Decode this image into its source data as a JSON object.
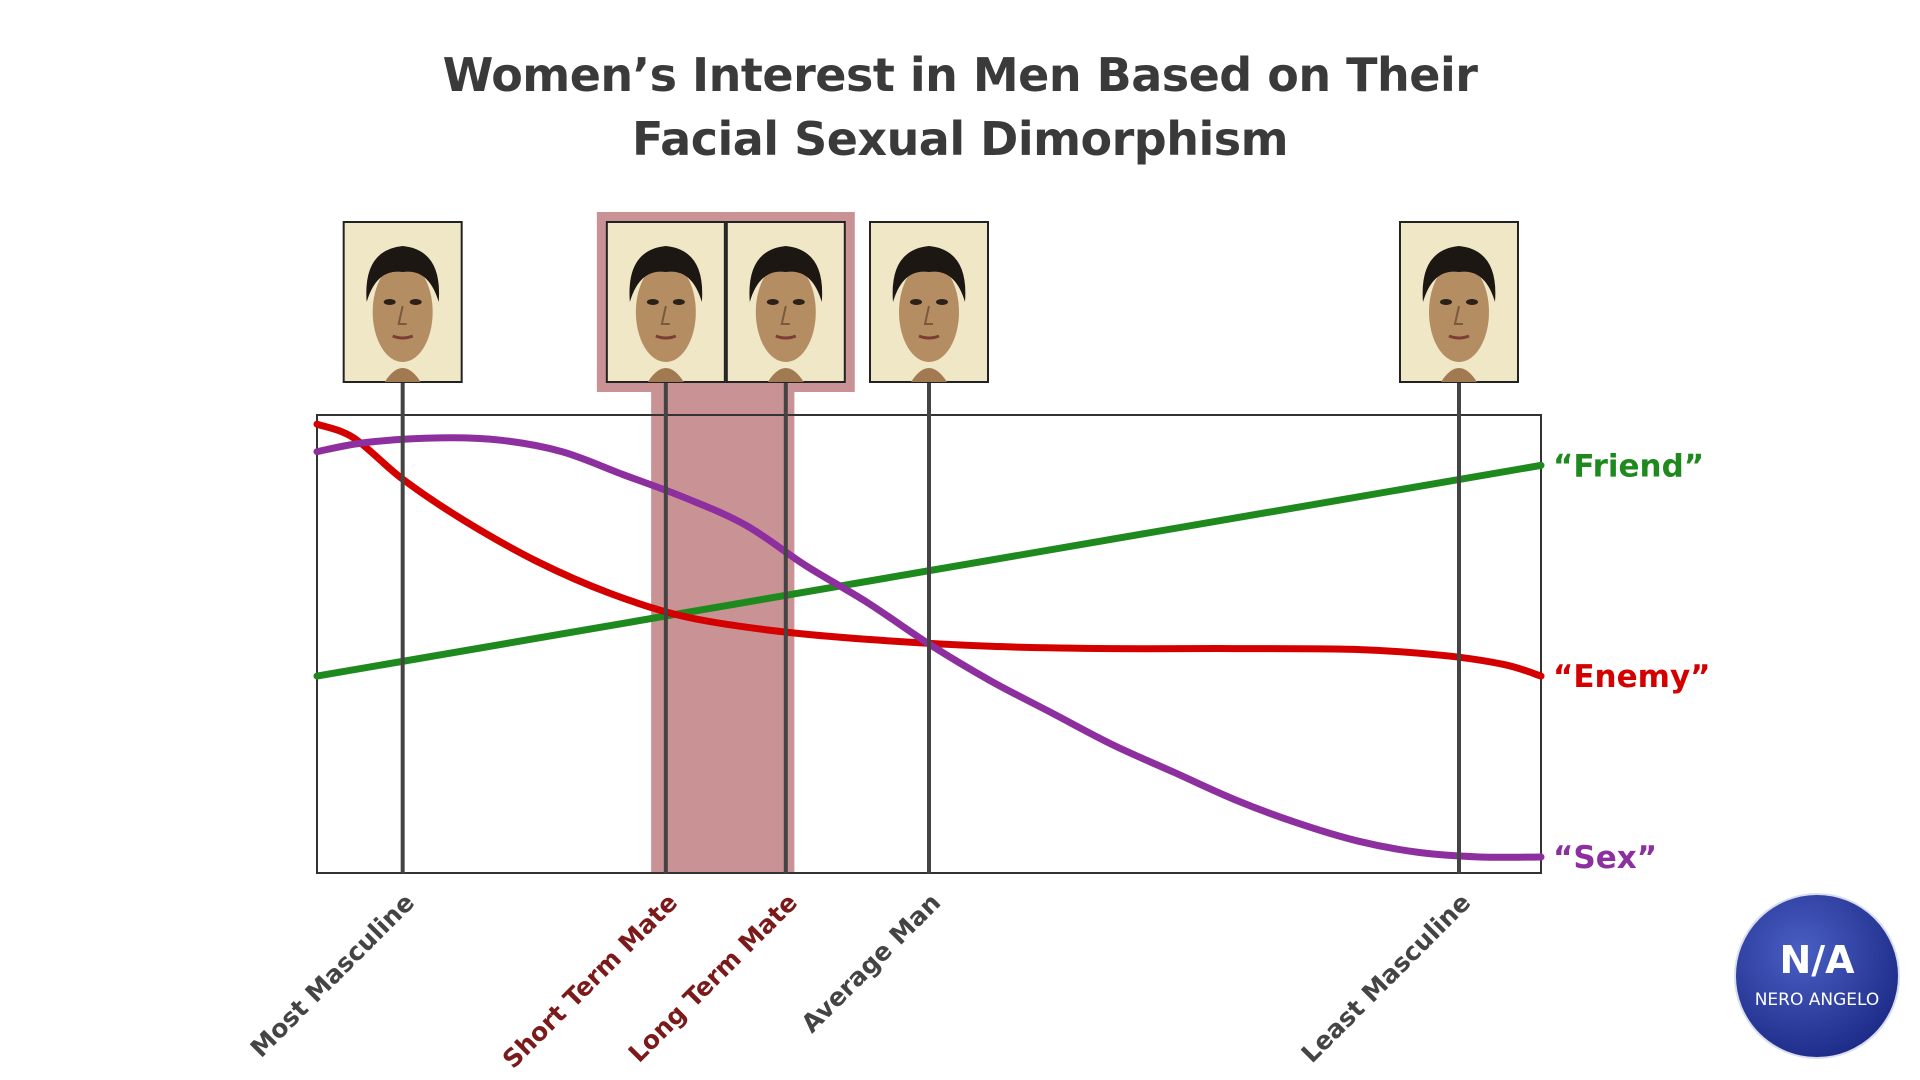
{
  "title_lines": [
    "Women’s Interest in Men Based on Their",
    "Facial Sexual Dimorphism"
  ],
  "chart_data": {
    "type": "line",
    "title": "Women’s Interest in Men Based on Their Facial Sexual Dimorphism",
    "x_axis": {
      "direction": "Most Masculine (left) to Least Masculine (right)",
      "range": [
        0,
        100
      ]
    },
    "y_axis": {
      "range": [
        0,
        100
      ],
      "ticks": false
    },
    "grid": false,
    "markers": [
      {
        "label": "Most Masculine",
        "x": 7,
        "highlight": false,
        "label_color": "#444444"
      },
      {
        "label": "Short Term Mate",
        "x": 28.5,
        "highlight": true,
        "label_color": "#7a1a1a"
      },
      {
        "label": "Long Term Mate",
        "x": 38.3,
        "highlight": true,
        "label_color": "#7a1a1a"
      },
      {
        "label": "Average Man",
        "x": 50,
        "highlight": false,
        "label_color": "#444444"
      },
      {
        "label": "Least Masculine",
        "x": 93.3,
        "highlight": false,
        "label_color": "#444444"
      }
    ],
    "highlight_band": {
      "x_range": [
        27.3,
        39.0
      ],
      "color": "#c99395"
    },
    "series": [
      {
        "name": "“Friend”",
        "color": "#1e8a1e",
        "points": [
          [
            0,
            43
          ],
          [
            100,
            89
          ]
        ]
      },
      {
        "name": "“Enemy”",
        "color": "#d40000",
        "points": [
          [
            0,
            98
          ],
          [
            3,
            95
          ],
          [
            7,
            86
          ],
          [
            12,
            77
          ],
          [
            18,
            68
          ],
          [
            24,
            61
          ],
          [
            30,
            56
          ],
          [
            37,
            53
          ],
          [
            45,
            51
          ],
          [
            55,
            49.5
          ],
          [
            65,
            49
          ],
          [
            75,
            49
          ],
          [
            85,
            48.8
          ],
          [
            92,
            47.5
          ],
          [
            97,
            45.5
          ],
          [
            100,
            43
          ]
        ]
      },
      {
        "name": "“Sex”",
        "color": "#8e2fa0",
        "points": [
          [
            0,
            92
          ],
          [
            4,
            94
          ],
          [
            10,
            95
          ],
          [
            15,
            94.5
          ],
          [
            20,
            92
          ],
          [
            25,
            87
          ],
          [
            30,
            82
          ],
          [
            35,
            76
          ],
          [
            40,
            67
          ],
          [
            45,
            59
          ],
          [
            50,
            50
          ],
          [
            55,
            42
          ],
          [
            60,
            35
          ],
          [
            65,
            28
          ],
          [
            70,
            22
          ],
          [
            75,
            16
          ],
          [
            80,
            11
          ],
          [
            85,
            7
          ],
          [
            90,
            4.5
          ],
          [
            95,
            3.5
          ],
          [
            100,
            3.5
          ]
        ]
      }
    ]
  },
  "logo": {
    "monogram": "N/A",
    "name": "NERO ANGELO"
  }
}
